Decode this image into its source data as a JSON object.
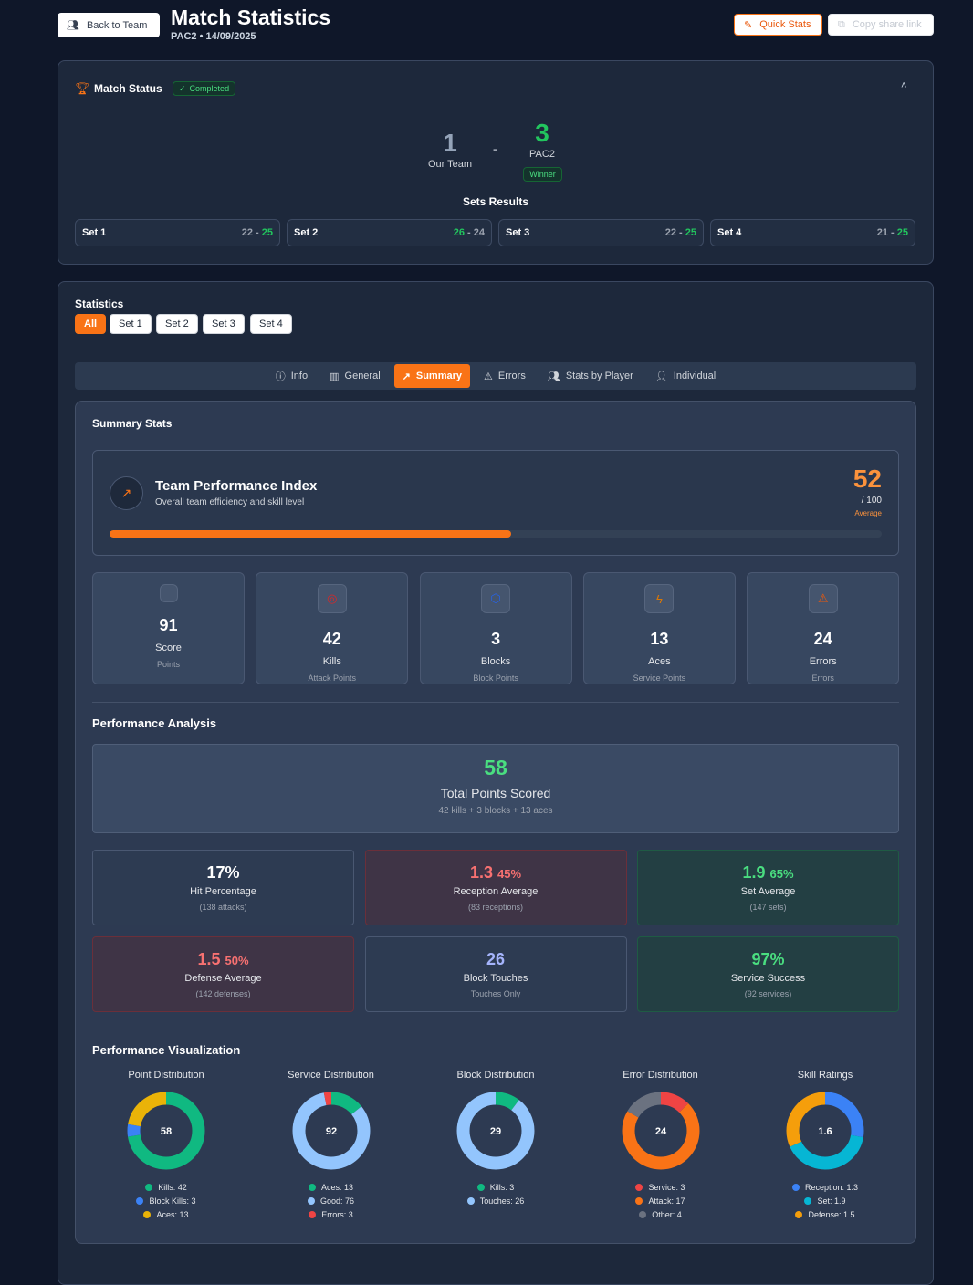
{
  "header": {
    "back": "Back to Team",
    "title": "Match Statistics",
    "subtitle": "PAC2 • 14/09/2025",
    "quick_stats": "Quick Stats",
    "copy_link": "Copy share link"
  },
  "match_status": {
    "title": "Match Status",
    "badge": "Completed",
    "our_score": "1",
    "our_label": "Our Team",
    "sep": "-",
    "opp_score": "3",
    "opp_label": "PAC2",
    "winner": "Winner",
    "sets_title": "Sets Results",
    "sets": [
      {
        "label": "Set 1",
        "a": "22",
        "b": "25",
        "winner": "b"
      },
      {
        "label": "Set 2",
        "a": "26",
        "b": "24",
        "winner": "a"
      },
      {
        "label": "Set 3",
        "a": "22",
        "b": "25",
        "winner": "b"
      },
      {
        "label": "Set 4",
        "a": "21",
        "b": "25",
        "winner": "b"
      }
    ]
  },
  "statistics": {
    "title": "Statistics",
    "filters": [
      "All",
      "Set 1",
      "Set 2",
      "Set 3",
      "Set 4"
    ],
    "active_filter": "All",
    "tabs": [
      "Info",
      "General",
      "Summary",
      "Errors",
      "Stats by Player",
      "Individual"
    ],
    "active_tab": "Summary"
  },
  "summary": {
    "title": "Summary Stats",
    "tpi": {
      "title": "Team Performance Index",
      "subtitle": "Overall team efficiency and skill level",
      "value": "52",
      "max": "/ 100",
      "rating": "Average",
      "progress": 52
    },
    "cards": [
      {
        "value": "91",
        "label": "Score",
        "sub": "Points",
        "icon": "blank-icon"
      },
      {
        "value": "42",
        "label": "Kills",
        "sub": "Attack Points",
        "icon": "target-icon"
      },
      {
        "value": "3",
        "label": "Blocks",
        "sub": "Block Points",
        "icon": "shield-icon"
      },
      {
        "value": "13",
        "label": "Aces",
        "sub": "Service Points",
        "icon": "lightning-icon"
      },
      {
        "value": "24",
        "label": "Errors",
        "sub": "Errors",
        "icon": "warning-icon"
      }
    ]
  },
  "analysis": {
    "title": "Performance Analysis",
    "total": {
      "value": "58",
      "label": "Total Points Scored",
      "sub": "42 kills + 3 blocks + 13 aces"
    },
    "items": [
      {
        "value": "17%",
        "pct": "",
        "label": "Hit Percentage",
        "sub": "(138 attacks)"
      },
      {
        "value": "1.3",
        "pct": "45%",
        "label": "Reception Average",
        "sub": "(83 receptions)"
      },
      {
        "value": "1.9",
        "pct": "65%",
        "label": "Set Average",
        "sub": "(147 sets)"
      },
      {
        "value": "1.5",
        "pct": "50%",
        "label": "Defense Average",
        "sub": "(142 defenses)"
      },
      {
        "value": "26",
        "pct": "",
        "label": "Block Touches",
        "sub": "Touches Only"
      },
      {
        "value": "97%",
        "pct": "",
        "label": "Service Success",
        "sub": "(92 services)"
      }
    ]
  },
  "visualization": {
    "title": "Performance Visualization"
  },
  "chart_data": [
    {
      "type": "pie",
      "title": "Point Distribution",
      "center": "58",
      "series": [
        {
          "name": "Kills",
          "value": 42,
          "color": "#10b981"
        },
        {
          "name": "Block Kills",
          "value": 3,
          "color": "#3b82f6"
        },
        {
          "name": "Aces",
          "value": 13,
          "color": "#eab308"
        }
      ]
    },
    {
      "type": "pie",
      "title": "Service Distribution",
      "center": "92",
      "series": [
        {
          "name": "Aces",
          "value": 13,
          "color": "#10b981"
        },
        {
          "name": "Good",
          "value": 76,
          "color": "#93c5fd"
        },
        {
          "name": "Errors",
          "value": 3,
          "color": "#ef4444"
        }
      ]
    },
    {
      "type": "pie",
      "title": "Block Distribution",
      "center": "29",
      "series": [
        {
          "name": "Kills",
          "value": 3,
          "color": "#10b981"
        },
        {
          "name": "Touches",
          "value": 26,
          "color": "#93c5fd"
        }
      ]
    },
    {
      "type": "pie",
      "title": "Error Distribution",
      "center": "24",
      "series": [
        {
          "name": "Service",
          "value": 3,
          "color": "#ef4444"
        },
        {
          "name": "Attack",
          "value": 17,
          "color": "#f97316"
        },
        {
          "name": "Other",
          "value": 4,
          "color": "#6b7280"
        }
      ]
    },
    {
      "type": "pie",
      "title": "Skill Ratings",
      "center": "1.6",
      "series": [
        {
          "name": "Reception",
          "value": 1.3,
          "color": "#3b82f6"
        },
        {
          "name": "Set",
          "value": 1.9,
          "color": "#06b6d4"
        },
        {
          "name": "Defense",
          "value": 1.5,
          "color": "#f59e0b"
        }
      ]
    }
  ]
}
